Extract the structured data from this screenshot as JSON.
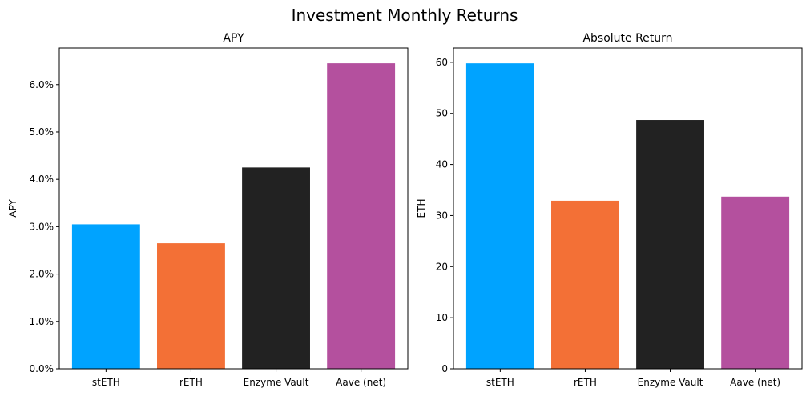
{
  "figure": {
    "title": "Investment Monthly Returns"
  },
  "chart_data": [
    {
      "type": "bar",
      "title": "APY",
      "xlabel": "",
      "ylabel": "APY",
      "categories": [
        "stETH",
        "rETH",
        "Enzyme Vault",
        "Aave (net)"
      ],
      "values": [
        3.05,
        2.65,
        4.25,
        6.45
      ],
      "value_unit": "%",
      "ylim": [
        0,
        6.773
      ],
      "yticks": [
        0,
        1,
        2,
        3,
        4,
        5,
        6
      ],
      "ytick_labels": [
        "0.0%",
        "1.0%",
        "2.0%",
        "3.0%",
        "4.0%",
        "5.0%",
        "6.0%"
      ],
      "colors": [
        "#00a3ff",
        "#f37036",
        "#222222",
        "#b4509e"
      ],
      "grid": false,
      "legend": "none"
    },
    {
      "type": "bar",
      "title": "Absolute Return",
      "xlabel": "",
      "ylabel": "ETH",
      "categories": [
        "stETH",
        "rETH",
        "Enzyme Vault",
        "Aave (net)"
      ],
      "values": [
        59.8,
        32.9,
        48.7,
        33.7
      ],
      "ylim": [
        0,
        62.8
      ],
      "yticks": [
        0,
        10,
        20,
        30,
        40,
        50,
        60
      ],
      "ytick_labels": [
        "0",
        "10",
        "20",
        "30",
        "40",
        "50",
        "60"
      ],
      "colors": [
        "#00a3ff",
        "#f37036",
        "#222222",
        "#b4509e"
      ],
      "grid": false,
      "legend": "none"
    }
  ]
}
